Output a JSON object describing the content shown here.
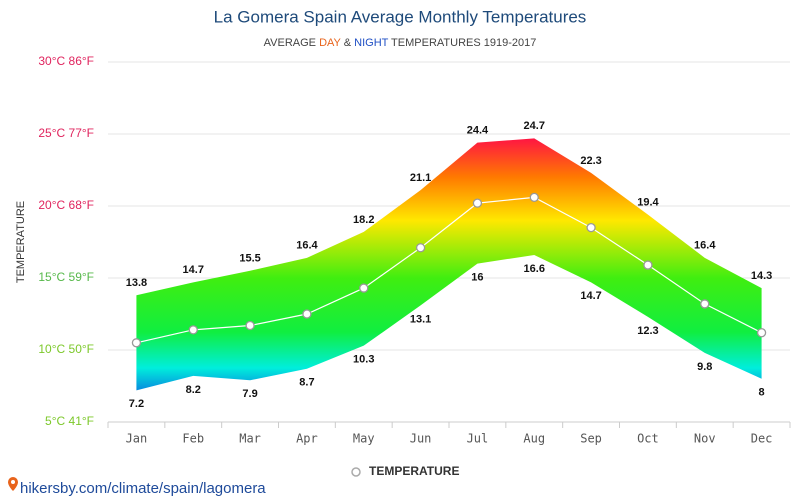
{
  "chart_data": {
    "type": "range-area",
    "title": "La Gomera Spain Average Monthly Temperatures",
    "subtitle": {
      "prefix": "AVERAGE",
      "day": "DAY",
      "amp": "&",
      "night": "NIGHT",
      "suffix": "TEMPERATURES 1919-2017"
    },
    "subtitle_colors": {
      "day": "#e8641c",
      "night": "#1f4fc4"
    },
    "y_label": "TEMPERATURE",
    "categories": [
      "Jan",
      "Feb",
      "Mar",
      "Apr",
      "May",
      "Jun",
      "Jul",
      "Aug",
      "Sep",
      "Oct",
      "Nov",
      "Dec"
    ],
    "high": [
      13.8,
      14.7,
      15.5,
      16.4,
      18.2,
      21.1,
      24.4,
      24.7,
      22.3,
      19.4,
      16.4,
      14.3
    ],
    "low": [
      7.2,
      8.2,
      7.9,
      8.7,
      10.3,
      13.1,
      16,
      16.6,
      14.7,
      12.3,
      9.8,
      8
    ],
    "series": [
      {
        "name": "TEMPERATURE",
        "color": "#ffffff",
        "values": [
          10.5,
          11.4,
          11.7,
          12.5,
          14.3,
          17.1,
          20.2,
          20.6,
          18.5,
          15.9,
          13.2,
          11.2
        ]
      }
    ],
    "ylim": [
      5,
      30
    ],
    "yticks": [
      {
        "value": 5,
        "label": "5°C 41°F"
      },
      {
        "value": 10,
        "label": "10°C 50°F"
      },
      {
        "value": 15,
        "label": "15°C 59°F"
      },
      {
        "value": 20,
        "label": "20°C 68°F"
      },
      {
        "value": 25,
        "label": "25°C 77°F"
      },
      {
        "value": 30,
        "label": "30°C 86°F"
      }
    ],
    "ytick_colors": [
      "#7cc82a",
      "#7cc82a",
      "#56b84a",
      "#e0245e",
      "#e0245e",
      "#e0245e"
    ],
    "grid": true,
    "legend": "bottom",
    "footer": "hikersby.com/climate/spain/lagomera"
  }
}
